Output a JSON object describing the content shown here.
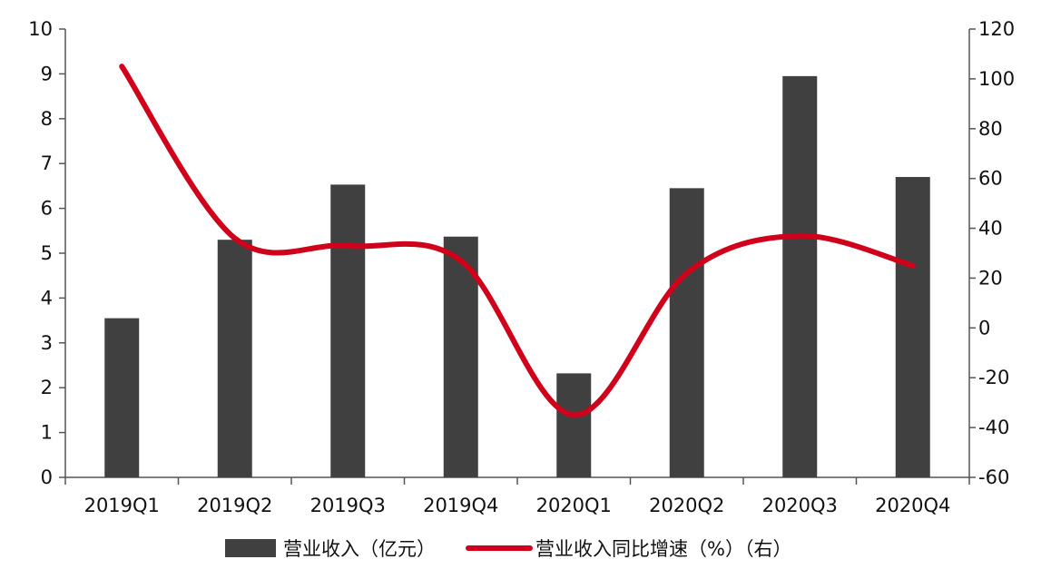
{
  "chart_data": {
    "type": "bar",
    "categories": [
      "2019Q1",
      "2019Q2",
      "2019Q3",
      "2019Q4",
      "2020Q1",
      "2020Q2",
      "2020Q3",
      "2020Q4"
    ],
    "series": [
      {
        "name": "营业收入（亿元）",
        "type": "bar",
        "axis": "left",
        "color": "#404040",
        "values": [
          3.55,
          5.3,
          6.53,
          5.37,
          2.32,
          6.45,
          8.95,
          6.7
        ]
      },
      {
        "name": "营业收入同比增速（%）（右）",
        "type": "line",
        "axis": "right",
        "color": "#d0021b",
        "smooth": true,
        "values": [
          105,
          36,
          33,
          27,
          -35,
          22,
          37,
          25
        ]
      }
    ],
    "y_left": {
      "min": 0,
      "max": 10,
      "ticks": [
        "0",
        "1",
        "2",
        "3",
        "4",
        "5",
        "6",
        "7",
        "8",
        "9",
        "10"
      ]
    },
    "y_right": {
      "min": -60,
      "max": 120,
      "ticks": [
        "-60",
        "-40",
        "-20",
        "0",
        "20",
        "40",
        "60",
        "80",
        "100",
        "120"
      ]
    },
    "title": "",
    "xlabel": "",
    "ylabel": "",
    "grid": false,
    "legend_position": "bottom"
  }
}
